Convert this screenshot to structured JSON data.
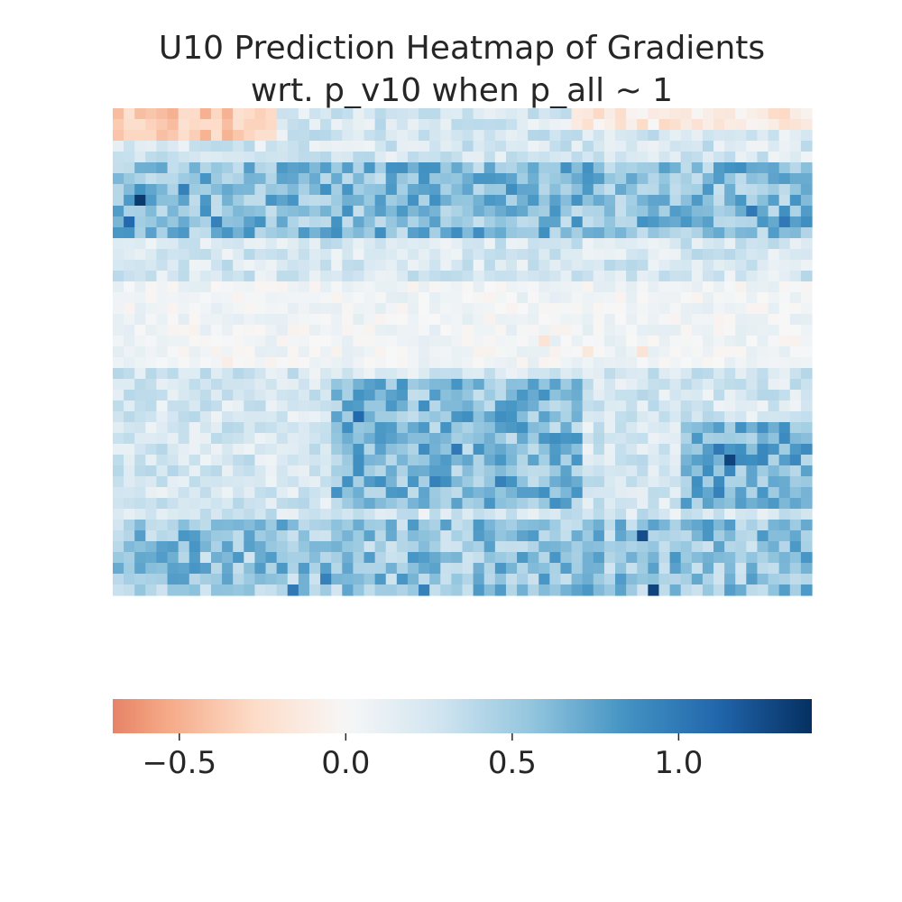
{
  "chart_data": {
    "type": "heatmap",
    "title_lines": [
      "U10 Prediction Heatmap of Gradients",
      "wrt. p_v10 when p_all ~ 1"
    ],
    "xlabel": "",
    "ylabel": "",
    "colormap": "RdBu",
    "vmin": -0.7,
    "vmax": 1.4,
    "grid": false,
    "colorbar": {
      "position": "bottom",
      "ticks": [
        -0.5,
        0.0,
        0.5,
        1.0
      ],
      "tick_labels": [
        "−0.5",
        "0.0",
        "0.5",
        "1.0"
      ]
    },
    "n_rows": 45,
    "n_cols": 64,
    "notes": "Cell values approximated from visible colors",
    "cell_value_regions": {
      "top_left_negative_band": {
        "rows": [
          0,
          2
        ],
        "cols": [
          0,
          14
        ],
        "value": -0.35
      },
      "top_right_negative_band": {
        "rows": [
          0,
          1
        ],
        "cols": [
          42,
          63
        ],
        "value": -0.15
      },
      "upper_positive_band": {
        "rows": [
          5,
          11
        ],
        "cols": [
          0,
          63
        ],
        "value": 0.6
      },
      "upper_strong_cells": [
        [
          8,
          2,
          1.35
        ],
        [
          10,
          1,
          1.1
        ],
        [
          7,
          6,
          0.95
        ],
        [
          10,
          9,
          0.95
        ],
        [
          9,
          58,
          1.0
        ],
        [
          10,
          61,
          1.0
        ]
      ],
      "middle_neutral_band": {
        "rows": [
          16,
          23
        ],
        "cols": [
          0,
          63
        ],
        "value": 0.05
      },
      "middle_negative_cells": [
        [
          21,
          39,
          -0.2
        ],
        [
          22,
          48,
          -0.2
        ],
        [
          22,
          43,
          -0.15
        ],
        [
          23,
          10,
          -0.1
        ]
      ],
      "center_positive_band": {
        "rows": [
          25,
          36
        ],
        "cols": [
          20,
          42
        ],
        "value": 0.6
      },
      "center_strong_cells": [
        [
          28,
          22,
          1.1
        ],
        [
          31,
          31,
          1.0
        ],
        [
          34,
          29,
          0.95
        ],
        [
          34,
          35,
          0.95
        ]
      ],
      "right_positive_cluster": {
        "rows": [
          29,
          36
        ],
        "cols": [
          52,
          63
        ],
        "value": 0.65
      },
      "right_strong_cells": [
        [
          32,
          56,
          1.3
        ],
        [
          31,
          55,
          1.0
        ],
        [
          35,
          55,
          0.95
        ]
      ],
      "bottom_positive_band": {
        "rows": [
          38,
          44
        ],
        "cols": [
          0,
          63
        ],
        "value": 0.55
      },
      "bottom_strong_cells": [
        [
          39,
          48,
          1.25
        ],
        [
          44,
          49,
          1.3
        ],
        [
          44,
          16,
          1.0
        ],
        [
          44,
          28,
          0.95
        ],
        [
          43,
          19,
          0.95
        ]
      ]
    }
  }
}
